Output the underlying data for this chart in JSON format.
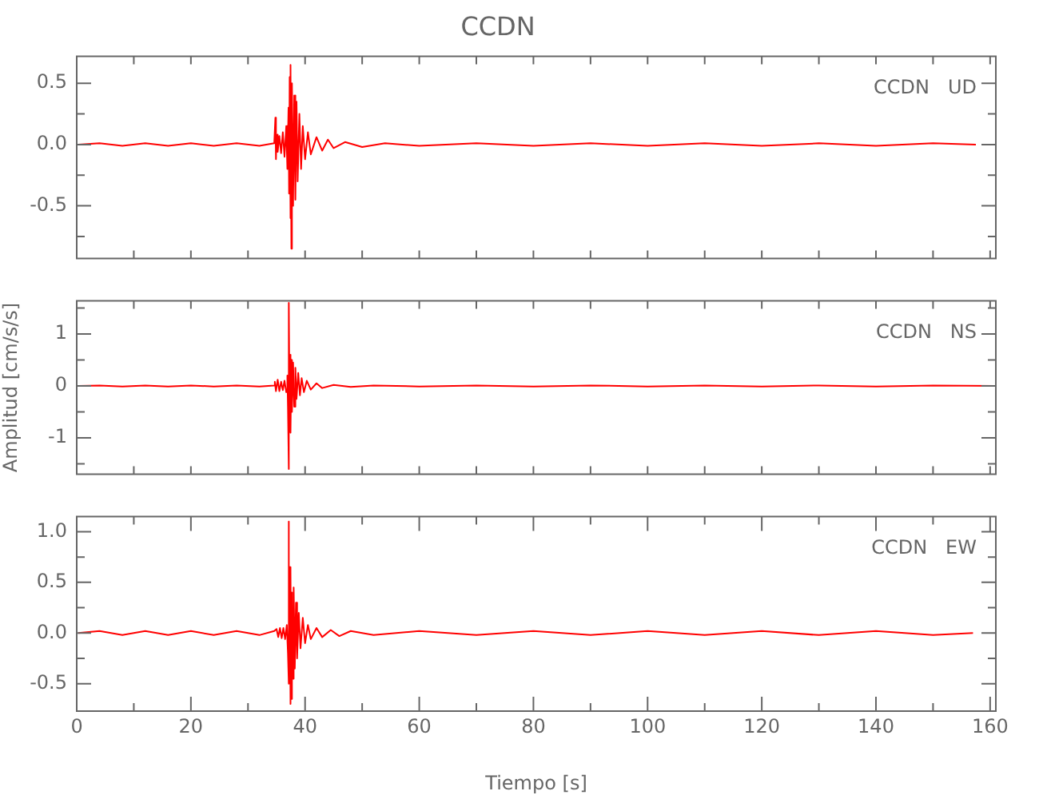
{
  "chart_data": [
    {
      "type": "line",
      "title": "CCDN",
      "annotations": [
        "CCDN   UD"
      ],
      "tick_labels": "y",
      "marker": "none",
      "xlim": [
        0,
        161
      ],
      "xticks": [
        {
          "value": 0,
          "label": null
        },
        {
          "value": 10,
          "label": null
        },
        {
          "value": 20,
          "label": null
        },
        {
          "value": 30,
          "label": null
        },
        {
          "value": 40,
          "label": null
        },
        {
          "value": 50,
          "label": null
        },
        {
          "value": 60,
          "label": null
        },
        {
          "value": 70,
          "label": null
        },
        {
          "value": 80,
          "label": null
        },
        {
          "value": 90,
          "label": null
        },
        {
          "value": 100,
          "label": null
        },
        {
          "value": 110,
          "label": null
        },
        {
          "value": 120,
          "label": null
        },
        {
          "value": 130,
          "label": null
        },
        {
          "value": 140,
          "label": null
        },
        {
          "value": 150,
          "label": null
        },
        {
          "value": 160,
          "label": null
        }
      ],
      "ylim": [
        -0.93,
        0.72
      ],
      "yticks": [
        {
          "value": -0.75,
          "label": null
        },
        -0.5,
        {
          "value": -0.25,
          "label": null
        },
        {
          "value": 0,
          "label": "0.0"
        },
        {
          "value": 0.25,
          "label": null
        },
        0.5
      ],
      "x": [
        0.3,
        4,
        8,
        12,
        16,
        20,
        24,
        28,
        32,
        34.6,
        34.8,
        34.9,
        35.0,
        35.2,
        35.5,
        35.8,
        36.1,
        36.4,
        36.7,
        36.9,
        37.1,
        37.2,
        37.3,
        37.4,
        37.5,
        37.6,
        37.7,
        37.9,
        38.1,
        38.3,
        38.5,
        38.7,
        39.0,
        39.3,
        39.6,
        40,
        40.5,
        41,
        42,
        43,
        44,
        45,
        47,
        50,
        54,
        60,
        70,
        80,
        90,
        100,
        110,
        120,
        130,
        140,
        150,
        157.5
      ],
      "series": [
        {
          "color": "#ff0000",
          "values": [
            0,
            0.01,
            -0.01,
            0.01,
            -0.01,
            0.01,
            -0.01,
            0.01,
            -0.01,
            0.01,
            0.22,
            -0.12,
            0.08,
            -0.06,
            0.07,
            -0.07,
            0.1,
            -0.1,
            0.15,
            -0.2,
            0.3,
            -0.4,
            0.55,
            -0.6,
            0.65,
            -0.85,
            0.5,
            -0.5,
            0.4,
            -0.45,
            0.35,
            -0.3,
            0.25,
            -0.2,
            0.15,
            -0.12,
            0.1,
            -0.08,
            0.06,
            -0.05,
            0.04,
            -0.03,
            0.02,
            -0.02,
            0.01,
            -0.01,
            0.01,
            -0.01,
            0.01,
            -0.01,
            0.01,
            -0.01,
            0.01,
            -0.01,
            0.01,
            0
          ]
        }
      ]
    },
    {
      "type": "line",
      "ylabel": "Amplitud [cm/s/s]",
      "annotations": [
        "CCDN   NS"
      ],
      "tick_labels": "y",
      "marker": "none",
      "xlim": [
        0,
        161
      ],
      "xticks": [
        {
          "value": 0,
          "label": null
        },
        {
          "value": 10,
          "label": null
        },
        {
          "value": 20,
          "label": null
        },
        {
          "value": 30,
          "label": null
        },
        {
          "value": 40,
          "label": null
        },
        {
          "value": 50,
          "label": null
        },
        {
          "value": 60,
          "label": null
        },
        {
          "value": 70,
          "label": null
        },
        {
          "value": 80,
          "label": null
        },
        {
          "value": 90,
          "label": null
        },
        {
          "value": 100,
          "label": null
        },
        {
          "value": 110,
          "label": null
        },
        {
          "value": 120,
          "label": null
        },
        {
          "value": 130,
          "label": null
        },
        {
          "value": 140,
          "label": null
        },
        {
          "value": 150,
          "label": null
        },
        {
          "value": 160,
          "label": null
        }
      ],
      "ylim": [
        -1.7,
        1.64
      ],
      "yticks": [
        {
          "value": -1.5,
          "label": null
        },
        -1,
        {
          "value": -0.5,
          "label": null
        },
        0,
        {
          "value": 0.5,
          "label": null
        },
        1,
        {
          "value": 1.5,
          "label": null
        }
      ],
      "x": [
        0.3,
        4,
        8,
        12,
        16,
        20,
        24,
        28,
        32,
        34.6,
        34.7,
        34.9,
        35.2,
        35.5,
        35.8,
        36.1,
        36.4,
        36.7,
        36.9,
        37.0,
        37.1,
        37.2,
        37.3,
        37.4,
        37.5,
        37.6,
        37.7,
        37.9,
        38.1,
        38.3,
        38.5,
        38.8,
        39.1,
        39.4,
        39.8,
        40.3,
        41,
        42,
        43,
        45,
        48,
        52,
        60,
        70,
        80,
        90,
        100,
        110,
        120,
        130,
        140,
        150,
        161
      ],
      "series": [
        {
          "color": "#ff0000",
          "values": [
            0,
            0.01,
            -0.01,
            0.01,
            -0.01,
            0.01,
            -0.01,
            0.01,
            -0.01,
            0.01,
            0.08,
            -0.1,
            0.12,
            -0.1,
            0.08,
            -0.08,
            0.1,
            -0.12,
            0.2,
            -0.4,
            -1.6,
            1.6,
            -0.8,
            0.6,
            -0.9,
            0.5,
            -0.5,
            0.45,
            -0.4,
            0.35,
            -0.25,
            0.25,
            -0.18,
            0.15,
            -0.12,
            0.1,
            -0.07,
            0.05,
            -0.04,
            0.02,
            -0.02,
            0.01,
            -0.01,
            0.01,
            -0.01,
            0.01,
            -0.01,
            0.01,
            -0.01,
            0.01,
            -0.01,
            0.01,
            0
          ]
        }
      ]
    },
    {
      "type": "line",
      "xlabel": "Tiempo [s]",
      "annotations": [
        "CCDN   EW"
      ],
      "marker": "none",
      "xlim": [
        0,
        161
      ],
      "xticks": [
        0,
        {
          "value": 10,
          "label": null
        },
        20,
        {
          "value": 30,
          "label": null
        },
        40,
        {
          "value": 50,
          "label": null
        },
        60,
        {
          "value": 70,
          "label": null
        },
        80,
        {
          "value": 90,
          "label": null
        },
        100,
        {
          "value": 110,
          "label": null
        },
        120,
        {
          "value": 130,
          "label": null
        },
        140,
        {
          "value": 150,
          "label": null
        },
        160
      ],
      "ylim": [
        -0.77,
        1.15
      ],
      "yticks": [
        -0.5,
        {
          "value": -0.25,
          "label": null
        },
        {
          "value": 0,
          "label": "0.0"
        },
        {
          "value": 0.25,
          "label": null
        },
        0.5,
        {
          "value": 0.75,
          "label": null
        },
        {
          "value": 1,
          "label": "1.0"
        }
      ],
      "x": [
        0.3,
        4,
        8,
        12,
        16,
        20,
        24,
        28,
        32,
        34.6,
        35,
        35.3,
        35.6,
        35.9,
        36.2,
        36.5,
        36.8,
        37.0,
        37.1,
        37.2,
        37.3,
        37.4,
        37.5,
        37.6,
        37.7,
        37.8,
        38.0,
        38.2,
        38.4,
        38.6,
        38.9,
        39.2,
        39.6,
        40.0,
        40.5,
        41,
        42,
        43,
        44.5,
        46,
        48,
        52,
        60,
        70,
        80,
        90,
        100,
        110,
        120,
        130,
        140,
        150,
        157
      ],
      "series": [
        {
          "color": "#ff0000",
          "values": [
            0,
            0.02,
            -0.02,
            0.02,
            -0.02,
            0.02,
            -0.02,
            0.02,
            -0.02,
            0.02,
            0.04,
            -0.04,
            0.05,
            -0.05,
            0.05,
            -0.06,
            0.08,
            -0.2,
            1.1,
            -0.5,
            0.65,
            -0.7,
            0.6,
            -0.65,
            0.4,
            -0.45,
            0.45,
            -0.35,
            0.3,
            -0.25,
            0.2,
            -0.15,
            0.15,
            -0.1,
            0.08,
            -0.06,
            0.05,
            -0.04,
            0.03,
            -0.03,
            0.02,
            -0.02,
            0.02,
            -0.02,
            0.02,
            -0.02,
            0.02,
            -0.02,
            0.02,
            -0.02,
            0.02,
            -0.02,
            0
          ]
        }
      ]
    }
  ]
}
